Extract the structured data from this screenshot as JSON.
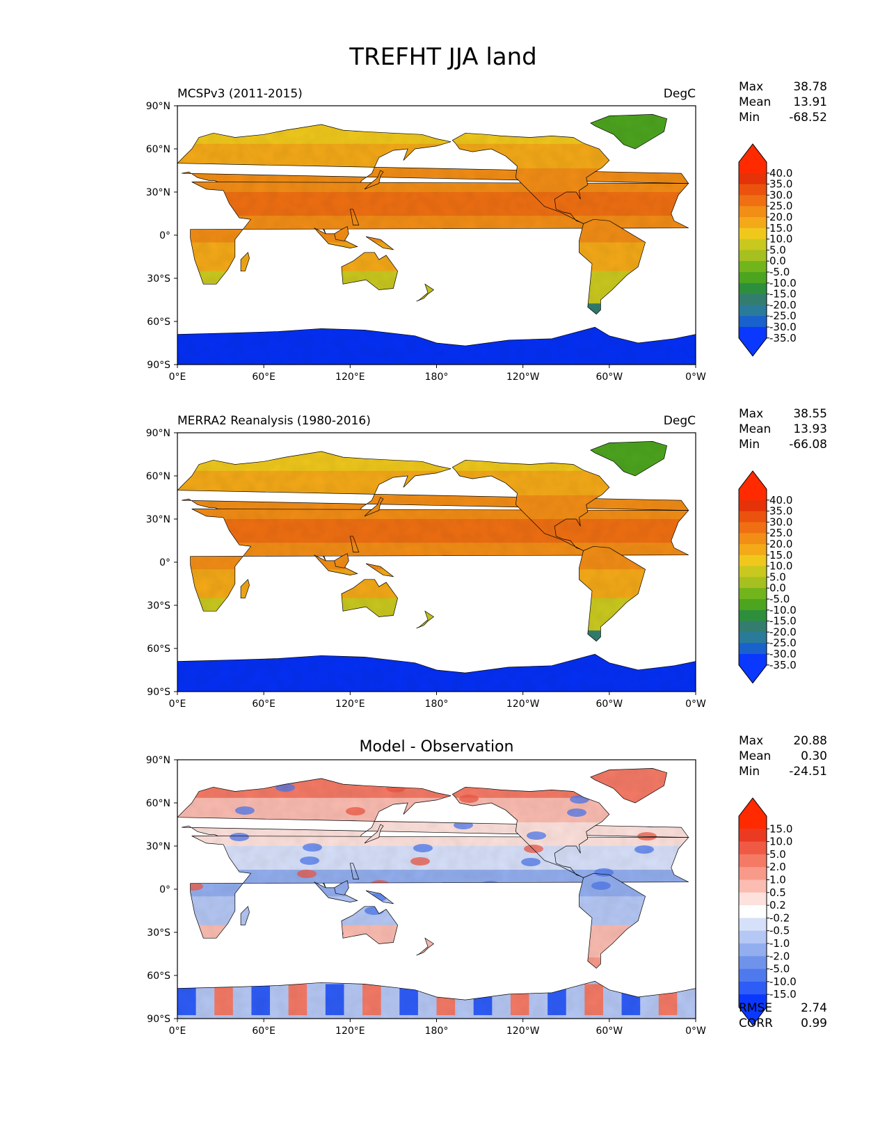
{
  "figure": {
    "title": "TREFHT JJA land"
  },
  "colors": {
    "abs_levels": [
      "#0a38ff",
      "#1961cc",
      "#2a7a9a",
      "#337d6f",
      "#2d8f3c",
      "#4da51f",
      "#72b41c",
      "#a5c01f",
      "#c9c81f",
      "#f0c81c",
      "#f4a918",
      "#f28d16",
      "#ef6f12",
      "#ea520d",
      "#e53208",
      "#ff2a00"
    ],
    "diff_levels": [
      "#0a38ff",
      "#2e5cf7",
      "#4f7aee",
      "#6f93ea",
      "#93aeef",
      "#b5c7f4",
      "#d7e0f9",
      "#ffffff",
      "#fde1dc",
      "#fbbcb1",
      "#f79a8a",
      "#f47a66",
      "#f05a45",
      "#eb3a22",
      "#ff2a00"
    ],
    "land_antarctica": "#0530f5"
  },
  "chart_data": [
    {
      "type": "heatmap",
      "title": "MCSPv3 (2011-2015)",
      "units": "DegC",
      "stats": {
        "max_label": "Max",
        "max": "38.78",
        "mean_label": "Mean",
        "mean": "13.91",
        "min_label": "Min",
        "min": "-68.52"
      },
      "x_ticks": [
        "0°E",
        "60°E",
        "120°E",
        "180°",
        "120°W",
        "60°W",
        "0°W"
      ],
      "y_ticks": [
        "90°N",
        "60°N",
        "30°N",
        "0°",
        "30°S",
        "60°S",
        "90°S"
      ],
      "xlim": [
        0,
        360
      ],
      "ylim": [
        -90,
        90
      ],
      "colorbar": [
        "40.0",
        "35.0",
        "30.0",
        "25.0",
        "20.0",
        "15.0",
        "10.0",
        "5.0",
        "0.0",
        "-5.0",
        "-10.0",
        "-15.0",
        "-20.0",
        "-25.0",
        "-30.0",
        "-35.0"
      ],
      "colorbar_extend": "both"
    },
    {
      "type": "heatmap",
      "title": "MERRA2 Reanalysis (1980-2016)",
      "units": "DegC",
      "stats": {
        "max_label": "Max",
        "max": "38.55",
        "mean_label": "Mean",
        "mean": "13.93",
        "min_label": "Min",
        "min": "-66.08"
      },
      "x_ticks": [
        "0°E",
        "60°E",
        "120°E",
        "180°",
        "120°W",
        "60°W",
        "0°W"
      ],
      "y_ticks": [
        "90°N",
        "60°N",
        "30°N",
        "0°",
        "30°S",
        "60°S",
        "90°S"
      ],
      "xlim": [
        0,
        360
      ],
      "ylim": [
        -90,
        90
      ],
      "colorbar": [
        "40.0",
        "35.0",
        "30.0",
        "25.0",
        "20.0",
        "15.0",
        "10.0",
        "5.0",
        "0.0",
        "-5.0",
        "-10.0",
        "-15.0",
        "-20.0",
        "-25.0",
        "-30.0",
        "-35.0"
      ],
      "colorbar_extend": "both"
    },
    {
      "type": "heatmap",
      "title": "Model - Observation",
      "units": "",
      "stats": {
        "max_label": "Max",
        "max": "20.88",
        "mean_label": "Mean",
        "mean": "0.30",
        "min_label": "Min",
        "min": "-24.51"
      },
      "x_ticks": [
        "0°E",
        "60°E",
        "120°E",
        "180°",
        "120°W",
        "60°W",
        "0°W"
      ],
      "y_ticks": [
        "90°N",
        "60°N",
        "30°N",
        "0°",
        "30°S",
        "60°S",
        "90°S"
      ],
      "xlim": [
        0,
        360
      ],
      "ylim": [
        -90,
        90
      ],
      "colorbar": [
        "15.0",
        "10.0",
        "5.0",
        "2.0",
        "1.0",
        "0.5",
        "0.2",
        "-0.2",
        "-0.5",
        "-1.0",
        "-2.0",
        "-5.0",
        "-10.0",
        "-15.0"
      ],
      "colorbar_extend": "both",
      "metrics": {
        "rmse_label": "RMSE",
        "rmse": "2.74",
        "corr_label": "CORR",
        "corr": "0.99"
      }
    }
  ]
}
